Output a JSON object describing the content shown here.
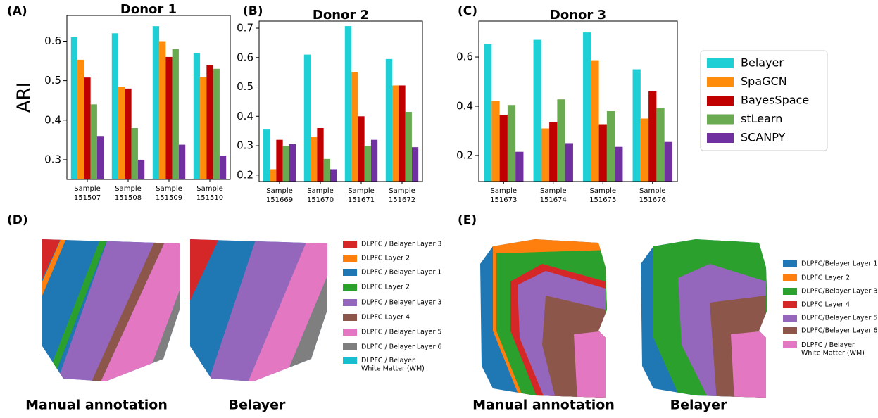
{
  "chart_data": [
    {
      "type": "bar",
      "title": "Donor 1",
      "ylabel": "ARI",
      "categories": [
        "Sample 151507",
        "Sample 151508",
        "Sample 151509",
        "Sample 151510"
      ],
      "ylim": [
        0.25,
        0.665
      ],
      "yticks": [
        0.3,
        0.4,
        0.5,
        0.6
      ],
      "series": [
        {
          "name": "Belayer",
          "color": "#1fcfd6",
          "values": [
            0.61,
            0.62,
            0.638,
            0.57
          ]
        },
        {
          "name": "SpaGCN",
          "color": "#ff8c0a",
          "values": [
            0.553,
            0.485,
            0.6,
            0.51
          ]
        },
        {
          "name": "BayesSpace",
          "color": "#c00000",
          "values": [
            0.508,
            0.48,
            0.56,
            0.54
          ]
        },
        {
          "name": "stLearn",
          "color": "#6aaa50",
          "values": [
            0.44,
            0.38,
            0.58,
            0.53
          ]
        },
        {
          "name": "SCANPY",
          "color": "#7030a0",
          "values": [
            0.36,
            0.3,
            0.338,
            0.31
          ]
        }
      ]
    },
    {
      "type": "bar",
      "title": "Donor 2",
      "categories": [
        "Sample 151669",
        "Sample 151670",
        "Sample 151671",
        "Sample 151672"
      ],
      "ylim": [
        0.178,
        0.724
      ],
      "yticks": [
        0.2,
        0.3,
        0.4,
        0.5,
        0.6,
        0.7
      ],
      "series": [
        {
          "color": "#1fcfd6",
          "values": [
            0.355,
            0.61,
            0.707,
            0.595
          ]
        },
        {
          "color": "#ff8c0a",
          "values": [
            0.22,
            0.33,
            0.55,
            0.505
          ]
        },
        {
          "color": "#c00000",
          "values": [
            0.32,
            0.36,
            0.4,
            0.505
          ]
        },
        {
          "color": "#6aaa50",
          "values": [
            0.3,
            0.255,
            0.3,
            0.415
          ]
        },
        {
          "color": "#7030a0",
          "values": [
            0.305,
            0.22,
            0.32,
            0.295
          ]
        }
      ]
    },
    {
      "type": "bar",
      "title": "Donor 3",
      "categories": [
        "Sample 151673",
        "Sample 151674",
        "Sample 151675",
        "Sample 151676"
      ],
      "ylim": [
        0.094,
        0.746
      ],
      "yticks": [
        0.2,
        0.4,
        0.6
      ],
      "series": [
        {
          "color": "#1fcfd6",
          "values": [
            0.652,
            0.67,
            0.7,
            0.55
          ]
        },
        {
          "color": "#ff8c0a",
          "values": [
            0.42,
            0.31,
            0.587,
            0.35
          ]
        },
        {
          "color": "#c00000",
          "values": [
            0.365,
            0.335,
            0.327,
            0.46
          ]
        },
        {
          "color": "#6aaa50",
          "values": [
            0.405,
            0.428,
            0.38,
            0.393
          ]
        },
        {
          "color": "#7030a0",
          "values": [
            0.215,
            0.25,
            0.235,
            0.255
          ]
        }
      ]
    }
  ],
  "panel_labels": [
    "(A)",
    "(B)",
    "(C)",
    "(D)",
    "(E)"
  ],
  "panel_d": {
    "captions": [
      "Manual annotation",
      "Belayer"
    ],
    "legend": [
      {
        "label": "DLPFC / Belayer Layer 3",
        "color": "#d62728"
      },
      {
        "label": "DLPFC Layer 2",
        "color": "#ff7f0e"
      },
      {
        "label": "DLPFC / Belayer Layer 1",
        "color": "#1f77b4"
      },
      {
        "label": "DLPFC Layer 2",
        "color": "#2ca02c"
      },
      {
        "label": "DLPFC / Belayer Layer 3",
        "color": "#9467bd"
      },
      {
        "label": "DLPFC Layer 4",
        "color": "#8c564b"
      },
      {
        "label": "DLPFC / Belayer Layer 5",
        "color": "#e377c2"
      },
      {
        "label": "DLPFC / Belayer Layer 6",
        "color": "#7f7f7f"
      },
      {
        "label": "DLPFC / Belayer White Matter (WM)",
        "color": "#17becf"
      }
    ]
  },
  "panel_e": {
    "captions": [
      "Manual annotation",
      "Belayer"
    ],
    "legend": [
      {
        "label": "DLPFC/Belayer Layer 1",
        "color": "#1f77b4"
      },
      {
        "label": "DLPFC Layer 2",
        "color": "#ff7f0e"
      },
      {
        "label": "DLPFC/Belayer Layer 3",
        "color": "#2ca02c"
      },
      {
        "label": "DLPFC Layer 4",
        "color": "#d62728"
      },
      {
        "label": "DLPFC/Belayer Layer 5",
        "color": "#9467bd"
      },
      {
        "label": "DLPFC/Belayer Layer 6",
        "color": "#8c564b"
      },
      {
        "label": "DLPFC / Belayer White Matter (WM)",
        "color": "#e377c2"
      }
    ]
  }
}
